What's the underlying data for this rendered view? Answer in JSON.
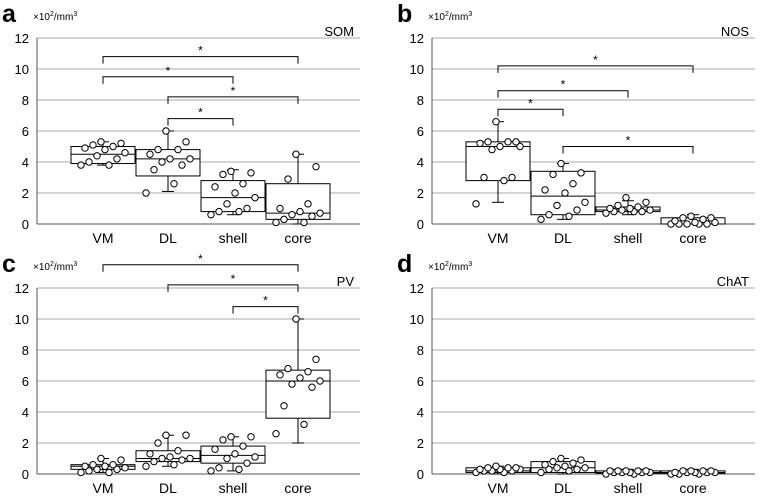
{
  "chart_data": [
    {
      "panel_letter": "a",
      "type": "box",
      "title": "SOM",
      "unit_base": "×10",
      "unit_exp": "2",
      "unit_tail": "/mm",
      "unit_exp2": "3",
      "ylim": [
        0,
        12
      ],
      "yticks": [
        0,
        2,
        4,
        6,
        8,
        10,
        12
      ],
      "categories": [
        "VM",
        "DL",
        "shell",
        "core"
      ],
      "boxes": [
        {
          "min": 3.8,
          "q1": 3.9,
          "median": 4.5,
          "q3": 5.0,
          "max": 5.3
        },
        {
          "min": 2.1,
          "q1": 3.1,
          "median": 4.2,
          "q3": 4.8,
          "max": 6.0
        },
        {
          "min": 0.6,
          "q1": 0.8,
          "median": 1.7,
          "q3": 2.8,
          "max": 3.5
        },
        {
          "min": 0.0,
          "q1": 0.3,
          "median": 0.7,
          "q3": 2.6,
          "max": 4.5
        }
      ],
      "points": [
        [
          3.8,
          3.8,
          4.0,
          4.2,
          4.4,
          4.6,
          4.8,
          4.9,
          5.0,
          5.1,
          5.2,
          5.3
        ],
        [
          2.0,
          2.6,
          3.5,
          3.8,
          4.0,
          4.2,
          4.2,
          4.5,
          4.8,
          4.8,
          5.3,
          6.0
        ],
        [
          0.6,
          0.8,
          0.8,
          1.0,
          1.3,
          1.7,
          2.0,
          2.4,
          2.6,
          3.2,
          3.3,
          3.4
        ],
        [
          0.1,
          0.1,
          0.3,
          0.5,
          0.6,
          0.7,
          0.8,
          1.0,
          1.3,
          2.9,
          3.7,
          4.5
        ]
      ],
      "significance": [
        {
          "from": 0,
          "to": 3,
          "y": 10.8,
          "label": "*"
        },
        {
          "from": 0,
          "to": 2,
          "y": 9.5,
          "label": "*"
        },
        {
          "from": 1,
          "to": 3,
          "y": 8.2,
          "label": "*"
        },
        {
          "from": 1,
          "to": 2,
          "y": 6.8,
          "label": "*"
        }
      ]
    },
    {
      "panel_letter": "b",
      "type": "box",
      "title": "NOS",
      "unit_base": "×10",
      "unit_exp": "2",
      "unit_tail": "/mm",
      "unit_exp2": "3",
      "ylim": [
        0,
        12
      ],
      "yticks": [
        0,
        2,
        4,
        6,
        8,
        10,
        12
      ],
      "categories": [
        "VM",
        "DL",
        "shell",
        "core"
      ],
      "boxes": [
        {
          "min": 1.4,
          "q1": 2.8,
          "median": 5.0,
          "q3": 5.3,
          "max": 6.6
        },
        {
          "min": 0.3,
          "q1": 0.6,
          "median": 1.8,
          "q3": 3.4,
          "max": 3.9
        },
        {
          "min": 0.6,
          "q1": 0.8,
          "median": 0.9,
          "q3": 1.1,
          "max": 1.5
        },
        {
          "min": 0.0,
          "q1": 0.0,
          "median": 0.0,
          "q3": 0.4,
          "max": 0.6
        }
      ],
      "points": [
        [
          1.3,
          2.8,
          3.0,
          3.0,
          4.8,
          5.0,
          5.0,
          5.2,
          5.3,
          5.3,
          5.3,
          6.6
        ],
        [
          0.3,
          0.5,
          0.6,
          0.9,
          1.2,
          1.4,
          2.0,
          2.2,
          2.6,
          3.2,
          3.3,
          3.9
        ],
        [
          0.7,
          0.8,
          0.8,
          0.8,
          0.9,
          0.9,
          1.0,
          1.0,
          1.1,
          1.2,
          1.4,
          1.7
        ],
        [
          0.0,
          0.0,
          0.0,
          0.0,
          0.0,
          0.1,
          0.1,
          0.2,
          0.3,
          0.4,
          0.4,
          0.5
        ]
      ],
      "significance": [
        {
          "from": 0,
          "to": 3,
          "y": 10.2,
          "label": "*"
        },
        {
          "from": 0,
          "to": 2,
          "y": 8.6,
          "label": "*"
        },
        {
          "from": 0,
          "to": 1,
          "y": 7.4,
          "label": "*"
        },
        {
          "from": 1,
          "to": 3,
          "y": 5.0,
          "label": "*"
        }
      ]
    },
    {
      "panel_letter": "c",
      "type": "box",
      "title": "PV",
      "unit_base": "×10",
      "unit_exp": "2",
      "unit_tail": "/mm",
      "unit_exp2": "3",
      "ylim": [
        0,
        12
      ],
      "yticks": [
        0,
        2,
        4,
        6,
        8,
        10,
        12
      ],
      "categories": [
        "VM",
        "DL",
        "shell",
        "core"
      ],
      "boxes": [
        {
          "min": 0.1,
          "q1": 0.3,
          "median": 0.5,
          "q3": 0.6,
          "max": 1.0
        },
        {
          "min": 0.5,
          "q1": 0.8,
          "median": 1.0,
          "q3": 1.5,
          "max": 2.5
        },
        {
          "min": 0.2,
          "q1": 0.7,
          "median": 1.2,
          "q3": 1.8,
          "max": 2.4
        },
        {
          "min": 2.0,
          "q1": 3.6,
          "median": 6.0,
          "q3": 6.7,
          "max": 10.0
        }
      ],
      "points": [
        [
          0.1,
          0.1,
          0.2,
          0.3,
          0.3,
          0.4,
          0.5,
          0.5,
          0.6,
          0.6,
          0.9,
          1.0
        ],
        [
          0.5,
          0.6,
          0.8,
          0.9,
          1.0,
          1.0,
          1.1,
          1.3,
          1.5,
          2.0,
          2.5,
          2.5
        ],
        [
          0.2,
          0.3,
          0.4,
          0.7,
          1.0,
          1.1,
          1.3,
          1.6,
          1.8,
          2.2,
          2.4,
          2.4
        ],
        [
          2.6,
          3.2,
          4.4,
          5.6,
          5.8,
          6.0,
          6.2,
          6.4,
          6.6,
          6.8,
          7.4,
          10.0
        ]
      ],
      "significance": [
        {
          "from": 0,
          "to": 3,
          "y": 13.5,
          "label": "*"
        },
        {
          "from": 1,
          "to": 3,
          "y": 12.2,
          "label": "*"
        },
        {
          "from": 2,
          "to": 3,
          "y": 10.8,
          "label": "*"
        }
      ]
    },
    {
      "panel_letter": "d",
      "type": "box",
      "title": "ChAT",
      "unit_base": "×10",
      "unit_exp": "2",
      "unit_tail": "/mm",
      "unit_exp2": "3",
      "ylim": [
        0,
        12
      ],
      "yticks": [
        0,
        2,
        4,
        6,
        8,
        10,
        12
      ],
      "categories": [
        "VM",
        "DL",
        "shell",
        "core"
      ],
      "boxes": [
        {
          "min": 0.0,
          "q1": 0.1,
          "median": 0.2,
          "q3": 0.4,
          "max": 0.5
        },
        {
          "min": 0.0,
          "q1": 0.1,
          "median": 0.4,
          "q3": 0.8,
          "max": 1.0
        },
        {
          "min": 0.0,
          "q1": 0.05,
          "median": 0.1,
          "q3": 0.2,
          "max": 0.3
        },
        {
          "min": 0.0,
          "q1": 0.05,
          "median": 0.1,
          "q3": 0.2,
          "max": 0.3
        }
      ],
      "points": [
        [
          0.1,
          0.1,
          0.2,
          0.2,
          0.2,
          0.3,
          0.3,
          0.3,
          0.4,
          0.4,
          0.4,
          0.5
        ],
        [
          0.1,
          0.2,
          0.3,
          0.3,
          0.4,
          0.4,
          0.5,
          0.6,
          0.7,
          0.8,
          0.9,
          1.0
        ],
        [
          0.0,
          0.0,
          0.1,
          0.1,
          0.1,
          0.1,
          0.1,
          0.2,
          0.2,
          0.2,
          0.2,
          0.2
        ],
        [
          0.0,
          0.0,
          0.0,
          0.1,
          0.1,
          0.1,
          0.1,
          0.1,
          0.2,
          0.2,
          0.2,
          0.2
        ]
      ],
      "significance": []
    }
  ]
}
